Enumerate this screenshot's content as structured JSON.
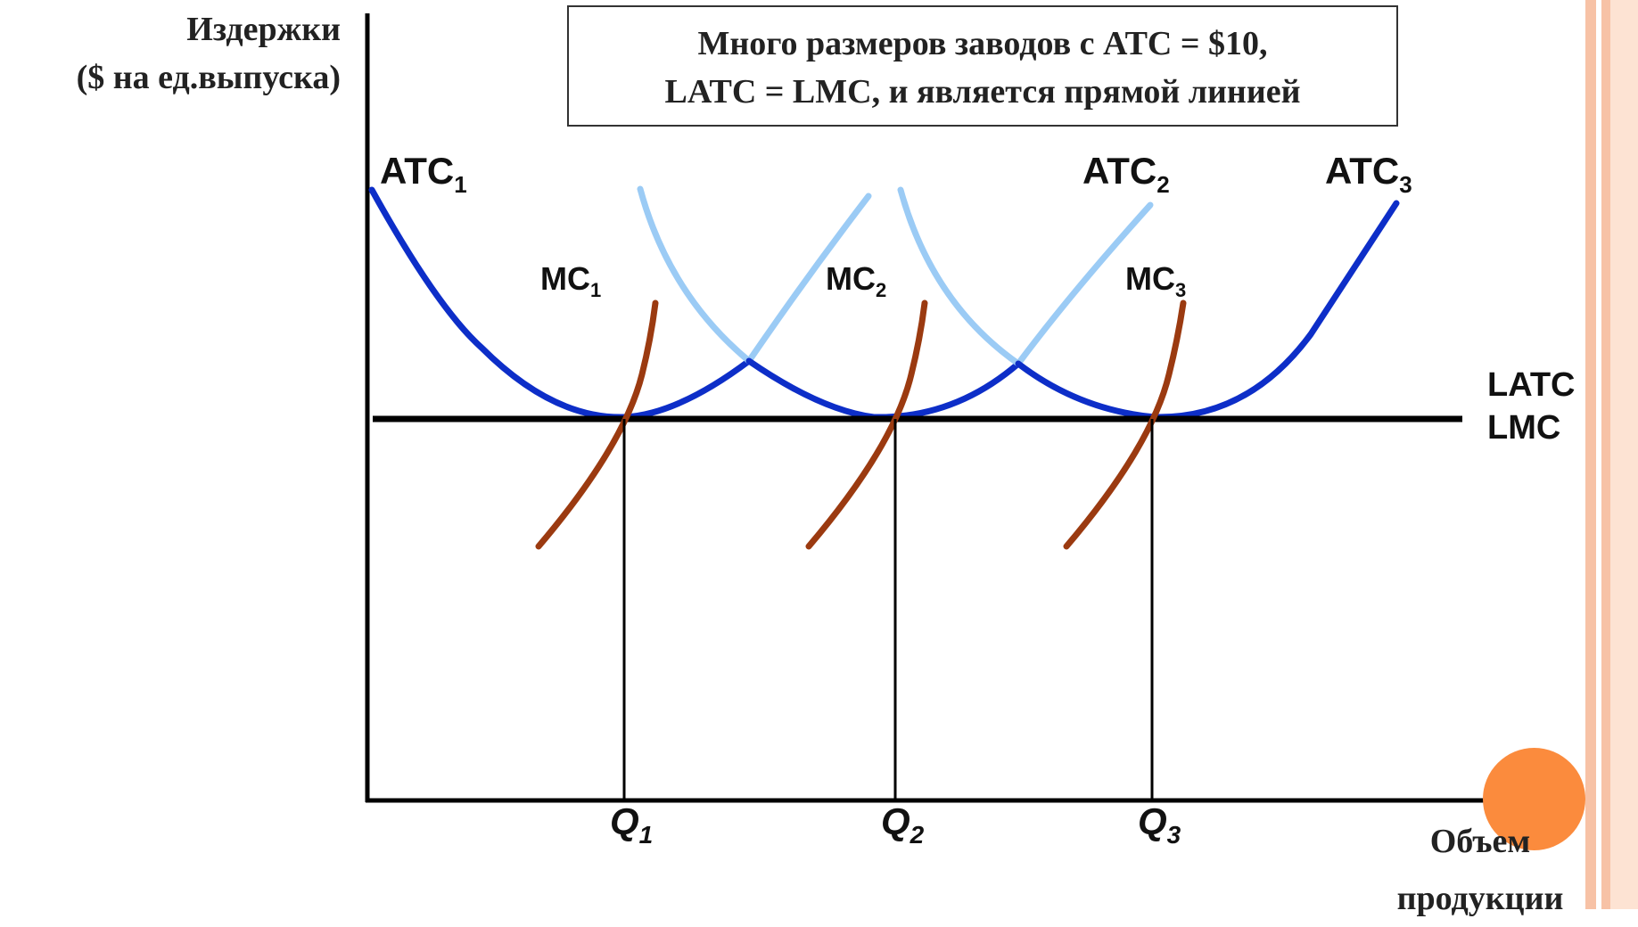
{
  "y_axis_label": [
    "Издержки",
    "($ на ед.выпуска)"
  ],
  "x_axis_label": [
    "Объем",
    "продукции"
  ],
  "note_box": [
    "Много размеров заводов с ATC = $10,",
    "LATC = LMC, и является прямой линией"
  ],
  "long_run_label": [
    "LATC =",
    "LMC"
  ],
  "curves": {
    "atc": [
      {
        "name": "ATC",
        "sub": "1"
      },
      {
        "name": "ATC",
        "sub": "2"
      },
      {
        "name": "ATC",
        "sub": "3"
      }
    ],
    "mc": [
      {
        "name": "MC",
        "sub": "1"
      },
      {
        "name": "MC",
        "sub": "2"
      },
      {
        "name": "MC",
        "sub": "3"
      }
    ]
  },
  "quantities": [
    {
      "name": "Q",
      "sub": "1"
    },
    {
      "name": "Q",
      "sub": "2"
    },
    {
      "name": "Q",
      "sub": "3"
    }
  ],
  "colors": {
    "atc_dark": "#0d2ec8",
    "atc_light": "#9bcbf5",
    "mc": "#9b3a10",
    "latc": "#000000",
    "accent_circle": "#fb8b3d",
    "side_stripe": "#f7c2a6"
  }
}
